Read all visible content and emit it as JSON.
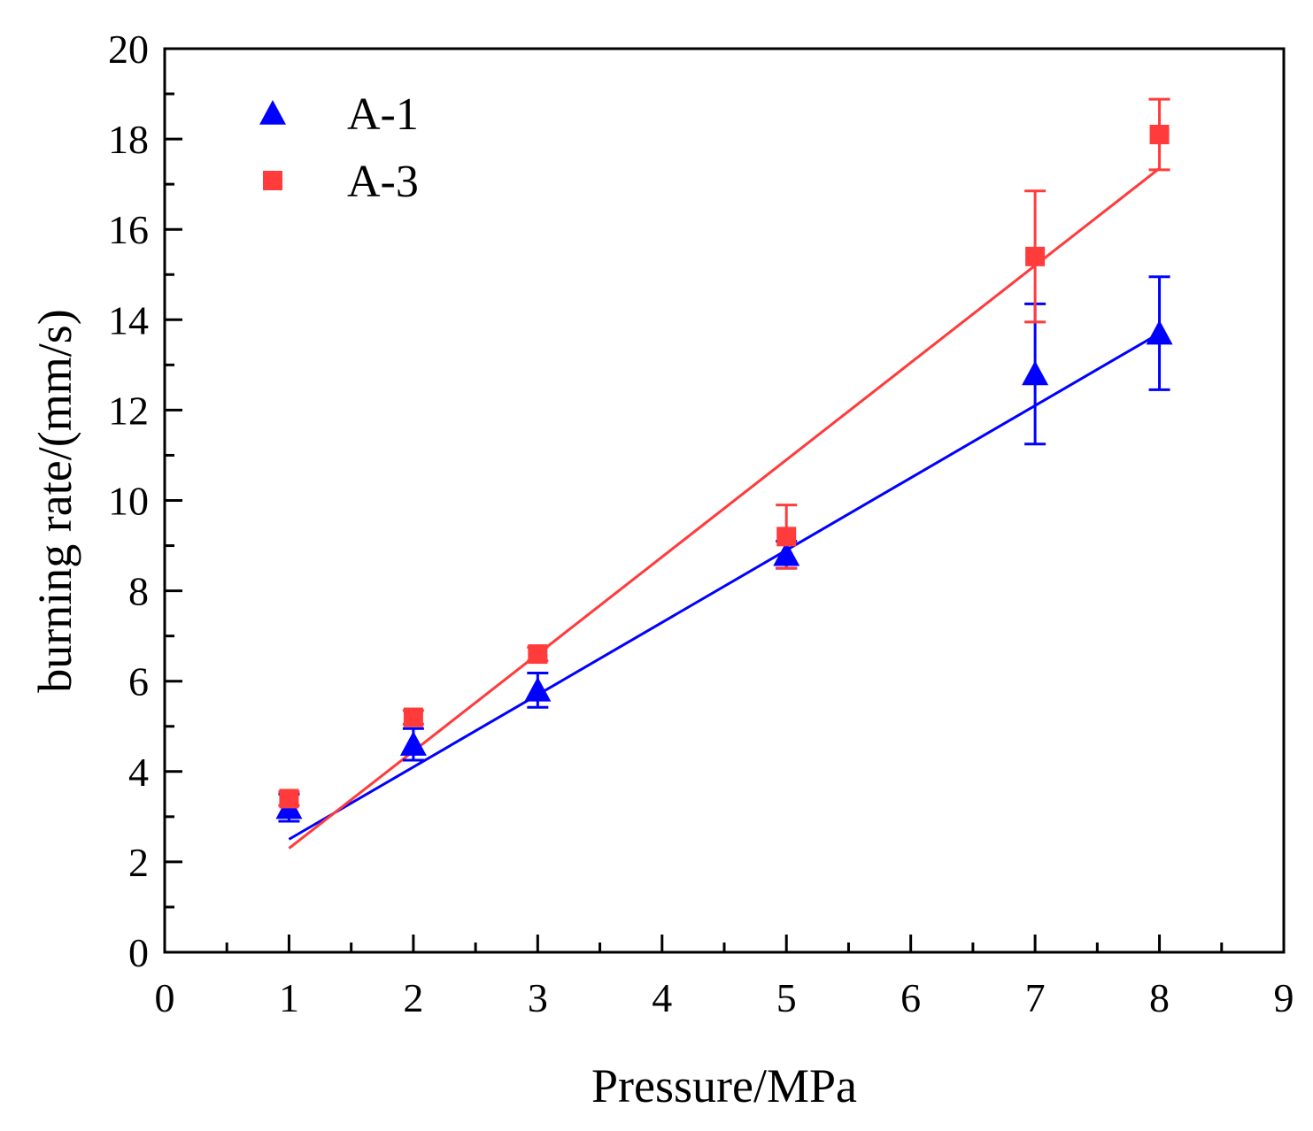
{
  "chart_data": {
    "type": "scatter",
    "xlabel": "Pressure/MPa",
    "ylabel": "burning rate/(mm/s)",
    "xlim": [
      0,
      9
    ],
    "ylim": [
      0,
      20
    ],
    "xticks": [
      "0",
      "1",
      "2",
      "3",
      "4",
      "5",
      "6",
      "7",
      "8",
      "9"
    ],
    "yticks": [
      "0",
      "2",
      "4",
      "6",
      "8",
      "10",
      "12",
      "14",
      "16",
      "18",
      "20"
    ],
    "legend_position": "top-left",
    "series": [
      {
        "name": "A-1",
        "marker": "triangle",
        "color": "#0000ff",
        "x": [
          1,
          2,
          3,
          5,
          7,
          8
        ],
        "y": [
          3.2,
          4.6,
          5.8,
          8.8,
          12.8,
          13.7
        ],
        "err": [
          0.3,
          0.35,
          0.38,
          0.3,
          1.55,
          1.25
        ],
        "fit": {
          "x": [
            1,
            8
          ],
          "y": [
            2.5,
            13.7
          ]
        }
      },
      {
        "name": "A-3",
        "marker": "square",
        "color": "#ff3b3b",
        "x": [
          1,
          2,
          3,
          5,
          7,
          8
        ],
        "y": [
          3.4,
          5.2,
          6.6,
          9.2,
          15.4,
          18.1
        ],
        "err": [
          0.15,
          0.15,
          0.15,
          0.7,
          1.45,
          0.78
        ],
        "fit": {
          "x": [
            1,
            8
          ],
          "y": [
            2.3,
            17.35
          ]
        }
      }
    ]
  }
}
